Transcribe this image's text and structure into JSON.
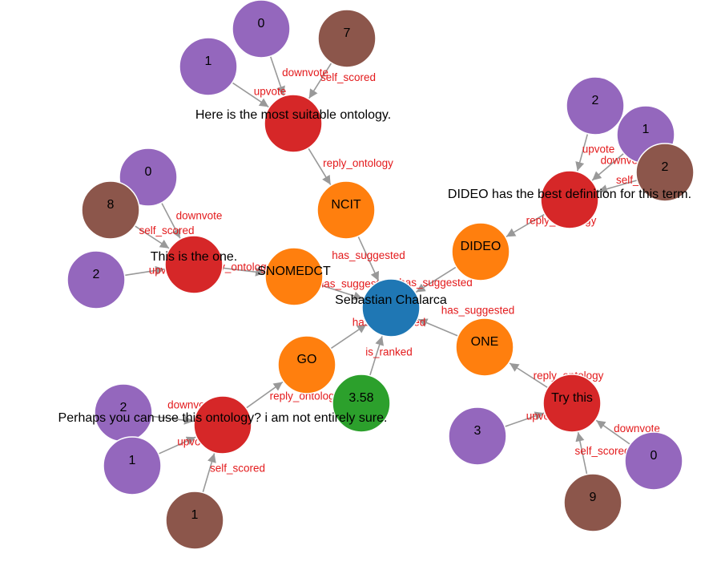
{
  "colors": {
    "user": "#1f77b4",
    "ontology": "#ff7f0e",
    "comment": "#d62728",
    "score": "#2ca02c",
    "vote": "#9467bd",
    "self_score": "#8c564b",
    "edge": "#999999",
    "edge_label": "#e31a1c"
  },
  "nodes": [
    {
      "id": "user",
      "kind": "user",
      "label": "",
      "text": "Sebastian Chalarca"
    },
    {
      "id": "score",
      "kind": "score",
      "label": "3.58",
      "text": ""
    },
    {
      "id": "ncit",
      "kind": "ontology",
      "label": "NCIT",
      "text": ""
    },
    {
      "id": "dideo",
      "kind": "ontology",
      "label": "DIDEO",
      "text": ""
    },
    {
      "id": "snomed",
      "kind": "ontology",
      "label": "SNOMEDCT",
      "text": ""
    },
    {
      "id": "go",
      "kind": "ontology",
      "label": "GO",
      "text": ""
    },
    {
      "id": "one",
      "kind": "ontology",
      "label": "ONE",
      "text": ""
    },
    {
      "id": "c1",
      "kind": "comment",
      "label": "",
      "text": "Here is the most suitable ontology."
    },
    {
      "id": "c2",
      "kind": "comment",
      "label": "",
      "text": "DIDEO has the best definition for this term."
    },
    {
      "id": "c3",
      "kind": "comment",
      "label": "",
      "text": "This is the one."
    },
    {
      "id": "c4",
      "kind": "comment",
      "label": "",
      "text": "Perhaps you can use this ontology? i am not entirely sure."
    },
    {
      "id": "c5",
      "kind": "comment",
      "label": "",
      "text": "Try this"
    },
    {
      "id": "v1a",
      "kind": "vote",
      "label": "0",
      "text": ""
    },
    {
      "id": "v1b",
      "kind": "vote",
      "label": "1",
      "text": ""
    },
    {
      "id": "s1",
      "kind": "self_score",
      "label": "7",
      "text": ""
    },
    {
      "id": "v2a",
      "kind": "vote",
      "label": "2",
      "text": ""
    },
    {
      "id": "v2b",
      "kind": "vote",
      "label": "1",
      "text": ""
    },
    {
      "id": "s2",
      "kind": "self_score",
      "label": "2",
      "text": ""
    },
    {
      "id": "v3a",
      "kind": "vote",
      "label": "0",
      "text": ""
    },
    {
      "id": "s3",
      "kind": "self_score",
      "label": "8",
      "text": ""
    },
    {
      "id": "v3b",
      "kind": "vote",
      "label": "2",
      "text": ""
    },
    {
      "id": "v4a",
      "kind": "vote",
      "label": "2",
      "text": ""
    },
    {
      "id": "v4b",
      "kind": "vote",
      "label": "1",
      "text": ""
    },
    {
      "id": "s4",
      "kind": "self_score",
      "label": "1",
      "text": ""
    },
    {
      "id": "v5a",
      "kind": "vote",
      "label": "3",
      "text": ""
    },
    {
      "id": "v5b",
      "kind": "vote",
      "label": "0",
      "text": ""
    },
    {
      "id": "s5",
      "kind": "self_score",
      "label": "9",
      "text": ""
    }
  ],
  "edges": [
    {
      "source": "ncit",
      "target": "user",
      "label": "has_suggested"
    },
    {
      "source": "dideo",
      "target": "user",
      "label": "has_suggested"
    },
    {
      "source": "snomed",
      "target": "user",
      "label": "has_suggested"
    },
    {
      "source": "go",
      "target": "user",
      "label": "has_suggested"
    },
    {
      "source": "one",
      "target": "user",
      "label": "has_suggested"
    },
    {
      "source": "score",
      "target": "user",
      "label": "is_ranked"
    },
    {
      "source": "c1",
      "target": "ncit",
      "label": "reply_ontology"
    },
    {
      "source": "c2",
      "target": "dideo",
      "label": "reply_ontology"
    },
    {
      "source": "c3",
      "target": "snomed",
      "label": "reply_ontology"
    },
    {
      "source": "c4",
      "target": "go",
      "label": "reply_ontology"
    },
    {
      "source": "c5",
      "target": "one",
      "label": "reply_ontology"
    },
    {
      "source": "v1a",
      "target": "c1",
      "label": "downvote"
    },
    {
      "source": "v1b",
      "target": "c1",
      "label": "upvote"
    },
    {
      "source": "s1",
      "target": "c1",
      "label": "self_scored"
    },
    {
      "source": "v2a",
      "target": "c2",
      "label": "upvote"
    },
    {
      "source": "v2b",
      "target": "c2",
      "label": "downvote"
    },
    {
      "source": "s2",
      "target": "c2",
      "label": "self_scored"
    },
    {
      "source": "v3a",
      "target": "c3",
      "label": "downvote"
    },
    {
      "source": "s3",
      "target": "c3",
      "label": "self_scored"
    },
    {
      "source": "v3b",
      "target": "c3",
      "label": "upvote"
    },
    {
      "source": "v4a",
      "target": "c4",
      "label": "downvote"
    },
    {
      "source": "v4b",
      "target": "c4",
      "label": "upvote"
    },
    {
      "source": "s4",
      "target": "c4",
      "label": "self_scored"
    },
    {
      "source": "v5a",
      "target": "c5",
      "label": "upvote"
    },
    {
      "source": "v5b",
      "target": "c5",
      "label": "downvote"
    },
    {
      "source": "s5",
      "target": "c5",
      "label": "self_scored"
    }
  ]
}
